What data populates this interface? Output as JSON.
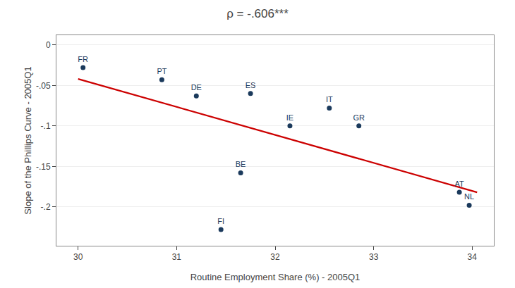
{
  "chart_data": {
    "type": "scatter",
    "title": "ρ = -.606***",
    "x_label": "Routine Employment Share (%) - 2005Q1",
    "y_label": "Slope of the Phillips Curve - 2005Q1",
    "series": [
      {
        "type": "line",
        "color": "#cc0000",
        "x": [
          30.0,
          34.05
        ],
        "values": [
          -0.042,
          -0.182
        ]
      },
      {
        "type": "scatter",
        "color": "#1b3a5c",
        "x": [
          30.05,
          30.85,
          31.2,
          31.75,
          32.55,
          32.15,
          32.85,
          31.65,
          33.87,
          33.97,
          31.45
        ],
        "values": [
          -0.028,
          -0.043,
          -0.063,
          -0.06,
          -0.078,
          -0.1,
          -0.1,
          -0.158,
          -0.182,
          -0.198,
          -0.228
        ],
        "labels": [
          "FR",
          "PT",
          "DE",
          "ES",
          "IT",
          "IE",
          "GR",
          "BE",
          "AT",
          "NL",
          "FI"
        ]
      }
    ],
    "xlim": [
      29.78,
      34.22
    ],
    "ylim": [
      -0.248,
      0.012
    ],
    "xticks": [
      30,
      31,
      32,
      33,
      34
    ],
    "yticks": [
      0,
      {
        "value": -0.05,
        "label": "-.05"
      },
      {
        "value": -0.1,
        "label": "-.1"
      },
      {
        "value": -0.15,
        "label": "-.15"
      },
      {
        "value": -0.2,
        "label": "-.2"
      }
    ],
    "grid": "y"
  }
}
